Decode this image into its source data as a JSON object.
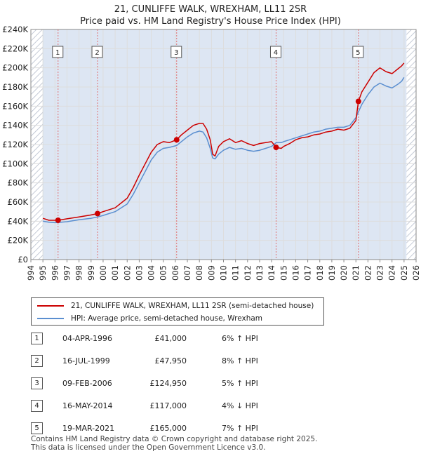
{
  "title_line1": "21, CUNLIFFE WALK, WREXHAM, LL11 2SR",
  "title_line2": "Price paid vs. HM Land Registry's House Price Index (HPI)",
  "colors": {
    "property": "#cc0000",
    "hpi": "#5b8fd0",
    "shade": "#dde6f3",
    "hatch": "#b0b8c8",
    "grid": "#dddddd",
    "axis": "#888888",
    "marker_line": "#e07070"
  },
  "legend": {
    "property_label": "21, CUNLIFFE WALK, WREXHAM, LL11 2SR (semi-detached house)",
    "hpi_label": "HPI: Average price, semi-detached house, Wrexham"
  },
  "sales": [
    {
      "num": "1",
      "date": "04-APR-1996",
      "price": "£41,000",
      "hpi": "6% ↑ HPI"
    },
    {
      "num": "2",
      "date": "16-JUL-1999",
      "price": "£47,950",
      "hpi": "8% ↑ HPI"
    },
    {
      "num": "3",
      "date": "09-FEB-2006",
      "price": "£124,950",
      "hpi": "5% ↑ HPI"
    },
    {
      "num": "4",
      "date": "16-MAY-2014",
      "price": "£117,000",
      "hpi": "4% ↓ HPI"
    },
    {
      "num": "5",
      "date": "19-MAR-2021",
      "price": "£165,000",
      "hpi": "7% ↑ HPI"
    }
  ],
  "footer_line1": "Contains HM Land Registry data © Crown copyright and database right 2025.",
  "footer_line2": "This data is licensed under the Open Government Licence v3.0.",
  "chart_data": {
    "type": "line",
    "title": "Price paid vs. HM Land Registry's House Price Index (HPI)",
    "xlim": [
      1994,
      2026
    ],
    "ylim": [
      0,
      240000
    ],
    "x_ticks": [
      "1994",
      "1995",
      "1996",
      "1997",
      "1998",
      "1999",
      "2000",
      "2001",
      "2002",
      "2003",
      "2004",
      "2005",
      "2006",
      "2007",
      "2008",
      "2009",
      "2010",
      "2011",
      "2012",
      "2013",
      "2014",
      "2015",
      "2016",
      "2017",
      "2018",
      "2019",
      "2020",
      "2021",
      "2022",
      "2023",
      "2024",
      "2025",
      "2026"
    ],
    "y_ticks": [
      {
        "value": 0,
        "label": "£0"
      },
      {
        "value": 20000,
        "label": "£20K"
      },
      {
        "value": 40000,
        "label": "£40K"
      },
      {
        "value": 60000,
        "label": "£60K"
      },
      {
        "value": 80000,
        "label": "£80K"
      },
      {
        "value": 100000,
        "label": "£100K"
      },
      {
        "value": 120000,
        "label": "£120K"
      },
      {
        "value": 140000,
        "label": "£140K"
      },
      {
        "value": 160000,
        "label": "£160K"
      },
      {
        "value": 180000,
        "label": "£180K"
      },
      {
        "value": 200000,
        "label": "£200K"
      },
      {
        "value": 220000,
        "label": "£220K"
      },
      {
        "value": 240000,
        "label": "£240K"
      }
    ],
    "data_range": [
      1995.0,
      2025.2
    ],
    "series": [
      {
        "name": "21, CUNLIFFE WALK, WREXHAM, LL11 2SR (semi-detached house)",
        "points": [
          [
            1995.0,
            43000
          ],
          [
            1995.5,
            41000
          ],
          [
            1996.0,
            41000
          ],
          [
            1996.26,
            41000
          ],
          [
            1997.0,
            42500
          ],
          [
            1998.0,
            44500
          ],
          [
            1999.0,
            46500
          ],
          [
            1999.54,
            47950
          ],
          [
            2000.0,
            50000
          ],
          [
            2001.0,
            54000
          ],
          [
            2002.0,
            64000
          ],
          [
            2002.5,
            75000
          ],
          [
            2003.0,
            88000
          ],
          [
            2003.5,
            100000
          ],
          [
            2004.0,
            112000
          ],
          [
            2004.5,
            120000
          ],
          [
            2005.0,
            123000
          ],
          [
            2005.5,
            122000
          ],
          [
            2006.11,
            124950
          ],
          [
            2006.5,
            130000
          ],
          [
            2007.0,
            135000
          ],
          [
            2007.5,
            140000
          ],
          [
            2008.0,
            142000
          ],
          [
            2008.3,
            142000
          ],
          [
            2008.6,
            136000
          ],
          [
            2008.9,
            125000
          ],
          [
            2009.1,
            110000
          ],
          [
            2009.3,
            108000
          ],
          [
            2009.6,
            118000
          ],
          [
            2010.0,
            123000
          ],
          [
            2010.5,
            126000
          ],
          [
            2011.0,
            122000
          ],
          [
            2011.5,
            124000
          ],
          [
            2012.0,
            121000
          ],
          [
            2012.5,
            119000
          ],
          [
            2013.0,
            121000
          ],
          [
            2013.5,
            122000
          ],
          [
            2014.0,
            123000
          ],
          [
            2014.37,
            117000
          ],
          [
            2014.8,
            116000
          ],
          [
            2015.0,
            118000
          ],
          [
            2015.5,
            121000
          ],
          [
            2016.0,
            125000
          ],
          [
            2016.5,
            127000
          ],
          [
            2017.0,
            128000
          ],
          [
            2017.5,
            130000
          ],
          [
            2018.0,
            131000
          ],
          [
            2018.5,
            133000
          ],
          [
            2019.0,
            134000
          ],
          [
            2019.5,
            136000
          ],
          [
            2020.0,
            135000
          ],
          [
            2020.5,
            137000
          ],
          [
            2021.0,
            145000
          ],
          [
            2021.21,
            165000
          ],
          [
            2021.5,
            175000
          ],
          [
            2022.0,
            185000
          ],
          [
            2022.5,
            195000
          ],
          [
            2023.0,
            200000
          ],
          [
            2023.5,
            196000
          ],
          [
            2024.0,
            194000
          ],
          [
            2024.5,
            199000
          ],
          [
            2024.8,
            202000
          ],
          [
            2025.0,
            205000
          ]
        ]
      },
      {
        "name": "HPI: Average price, semi-detached house, Wrexham",
        "points": [
          [
            1995.0,
            40000
          ],
          [
            1995.5,
            39000
          ],
          [
            1996.0,
            38500
          ],
          [
            1996.26,
            38700
          ],
          [
            1997.0,
            39500
          ],
          [
            1998.0,
            41500
          ],
          [
            1999.0,
            43000
          ],
          [
            1999.54,
            44400
          ],
          [
            2000.0,
            46000
          ],
          [
            2001.0,
            50000
          ],
          [
            2002.0,
            58000
          ],
          [
            2002.5,
            68000
          ],
          [
            2003.0,
            80000
          ],
          [
            2003.5,
            92000
          ],
          [
            2004.0,
            104000
          ],
          [
            2004.5,
            112000
          ],
          [
            2005.0,
            116000
          ],
          [
            2005.5,
            117000
          ],
          [
            2006.11,
            119000
          ],
          [
            2006.5,
            123000
          ],
          [
            2007.0,
            128000
          ],
          [
            2007.5,
            132000
          ],
          [
            2008.0,
            134000
          ],
          [
            2008.3,
            133000
          ],
          [
            2008.6,
            127000
          ],
          [
            2008.9,
            116000
          ],
          [
            2009.1,
            106000
          ],
          [
            2009.3,
            105000
          ],
          [
            2009.6,
            110000
          ],
          [
            2010.0,
            114000
          ],
          [
            2010.5,
            117000
          ],
          [
            2011.0,
            115000
          ],
          [
            2011.5,
            116000
          ],
          [
            2012.0,
            114000
          ],
          [
            2012.5,
            113000
          ],
          [
            2013.0,
            114000
          ],
          [
            2013.5,
            116000
          ],
          [
            2014.0,
            118000
          ],
          [
            2014.37,
            121900
          ],
          [
            2014.8,
            122000
          ],
          [
            2015.0,
            123000
          ],
          [
            2015.5,
            125000
          ],
          [
            2016.0,
            127000
          ],
          [
            2016.5,
            129000
          ],
          [
            2017.0,
            131000
          ],
          [
            2017.5,
            133000
          ],
          [
            2018.0,
            134000
          ],
          [
            2018.5,
            136000
          ],
          [
            2019.0,
            137000
          ],
          [
            2019.5,
            138000
          ],
          [
            2020.0,
            138000
          ],
          [
            2020.5,
            140000
          ],
          [
            2021.0,
            148000
          ],
          [
            2021.21,
            154000
          ],
          [
            2021.5,
            162000
          ],
          [
            2022.0,
            172000
          ],
          [
            2022.5,
            180000
          ],
          [
            2023.0,
            184000
          ],
          [
            2023.5,
            181000
          ],
          [
            2024.0,
            179000
          ],
          [
            2024.5,
            183000
          ],
          [
            2024.8,
            186000
          ],
          [
            2025.0,
            190000
          ]
        ]
      }
    ],
    "sale_markers": [
      {
        "num": "1",
        "x": 1996.26,
        "y": 41000
      },
      {
        "num": "2",
        "x": 1999.54,
        "y": 47950
      },
      {
        "num": "3",
        "x": 2006.11,
        "y": 124950
      },
      {
        "num": "4",
        "x": 2014.37,
        "y": 117000
      },
      {
        "num": "5",
        "x": 2021.21,
        "y": 165000
      }
    ]
  }
}
